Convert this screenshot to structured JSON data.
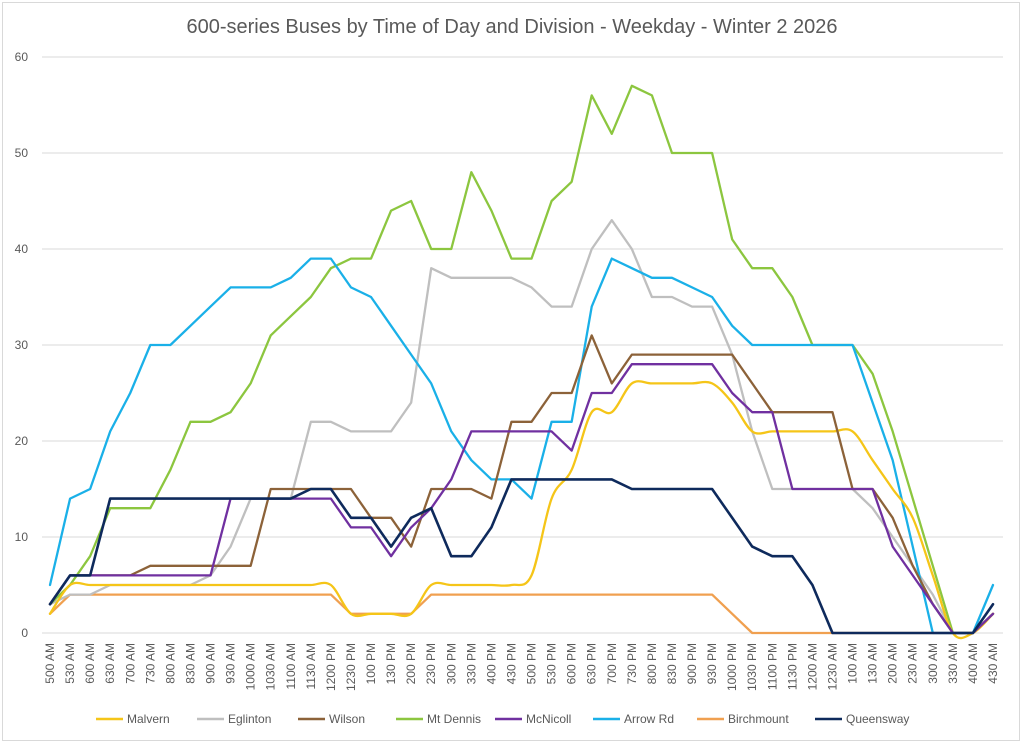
{
  "chart_data": {
    "type": "line",
    "title": "600-series Buses by Time of Day and Division - Weekday - Winter 2 2026",
    "xlabel": "",
    "ylabel": "",
    "ylim": [
      0,
      60
    ],
    "yticks": [
      0,
      10,
      20,
      30,
      40,
      50,
      60
    ],
    "grid": "horizontal",
    "legend_position": "bottom",
    "categories": [
      "500 AM",
      "530 AM",
      "600 AM",
      "630 AM",
      "700 AM",
      "730 AM",
      "800 AM",
      "830 AM",
      "900 AM",
      "930 AM",
      "1000 AM",
      "1030 AM",
      "1100 AM",
      "1130 AM",
      "1200 PM",
      "1230 PM",
      "100 PM",
      "130 PM",
      "200 PM",
      "230 PM",
      "300 PM",
      "330 PM",
      "400 PM",
      "430 PM",
      "500 PM",
      "530 PM",
      "600 PM",
      "630 PM",
      "700 PM",
      "730 PM",
      "800 PM",
      "830 PM",
      "900 PM",
      "930 PM",
      "1000 PM",
      "1030 PM",
      "1100 PM",
      "1130 PM",
      "1200 AM",
      "1230 AM",
      "100 AM",
      "130 AM",
      "200 AM",
      "230 AM",
      "300 AM",
      "330 AM",
      "400 AM",
      "430 AM"
    ],
    "series": [
      {
        "name": "Malvern",
        "color": "#f5c518",
        "smooth": true,
        "values": [
          2,
          5,
          5,
          5,
          5,
          5,
          5,
          5,
          5,
          5,
          5,
          5,
          5,
          5,
          5,
          2,
          2,
          2,
          2,
          5,
          5,
          5,
          5,
          5,
          6,
          14,
          17,
          23,
          23,
          26,
          26,
          26,
          26,
          26,
          24,
          21,
          21,
          21,
          21,
          21,
          21,
          18,
          15,
          12,
          6,
          0,
          0,
          2
        ]
      },
      {
        "name": "Eglinton",
        "color": "#bfbfbf",
        "smooth": false,
        "values": [
          3,
          4,
          4,
          5,
          5,
          5,
          5,
          5,
          6,
          9,
          14,
          14,
          14,
          22,
          22,
          21,
          21,
          21,
          24,
          38,
          37,
          37,
          37,
          37,
          36,
          34,
          34,
          40,
          43,
          40,
          35,
          35,
          34,
          34,
          29,
          21,
          15,
          15,
          15,
          15,
          15,
          13,
          10,
          7,
          4,
          0,
          0,
          2
        ]
      },
      {
        "name": "Wilson",
        "color": "#8c6239",
        "smooth": false,
        "values": [
          3,
          6,
          6,
          6,
          6,
          7,
          7,
          7,
          7,
          7,
          7,
          15,
          15,
          15,
          15,
          15,
          12,
          12,
          9,
          15,
          15,
          15,
          14,
          22,
          22,
          25,
          25,
          31,
          26,
          29,
          29,
          29,
          29,
          29,
          29,
          26,
          23,
          23,
          23,
          23,
          15,
          15,
          12,
          7,
          3,
          0,
          0,
          2
        ]
      },
      {
        "name": "Mt Dennis",
        "color": "#8cc63f",
        "smooth": false,
        "values": [
          3,
          5,
          8,
          13,
          13,
          13,
          17,
          22,
          22,
          23,
          26,
          31,
          33,
          35,
          38,
          39,
          39,
          44,
          45,
          40,
          40,
          48,
          44,
          39,
          39,
          45,
          47,
          56,
          52,
          57,
          56,
          50,
          50,
          50,
          41,
          38,
          38,
          35,
          30,
          30,
          30,
          27,
          21,
          14,
          7,
          0,
          0,
          2
        ]
      },
      {
        "name": "McNicoll",
        "color": "#7030a0",
        "smooth": false,
        "values": [
          3,
          6,
          6,
          6,
          6,
          6,
          6,
          6,
          6,
          14,
          14,
          14,
          14,
          14,
          14,
          11,
          11,
          8,
          11,
          13,
          16,
          21,
          21,
          21,
          21,
          21,
          19,
          25,
          25,
          28,
          28,
          28,
          28,
          28,
          25,
          23,
          23,
          15,
          15,
          15,
          15,
          15,
          9,
          6,
          3,
          0,
          0,
          2
        ]
      },
      {
        "name": "Arrow Rd",
        "color": "#1ab0e8",
        "smooth": false,
        "values": [
          5,
          14,
          15,
          21,
          25,
          30,
          30,
          32,
          34,
          36,
          36,
          36,
          37,
          39,
          39,
          36,
          35,
          32,
          29,
          26,
          21,
          18,
          16,
          16,
          14,
          22,
          22,
          34,
          39,
          38,
          37,
          37,
          36,
          35,
          32,
          30,
          30,
          30,
          30,
          30,
          30,
          24,
          18,
          9,
          0,
          0,
          0,
          5
        ]
      },
      {
        "name": "Birchmount",
        "color": "#f0a050",
        "smooth": false,
        "values": [
          2,
          4,
          4,
          4,
          4,
          4,
          4,
          4,
          4,
          4,
          4,
          4,
          4,
          4,
          4,
          2,
          2,
          2,
          2,
          4,
          4,
          4,
          4,
          4,
          4,
          4,
          4,
          4,
          4,
          4,
          4,
          4,
          4,
          4,
          2,
          0,
          0,
          0,
          0,
          0,
          0,
          0,
          0,
          0,
          0,
          0,
          0,
          2
        ]
      },
      {
        "name": "Queensway",
        "color": "#0e2a5c",
        "smooth": false,
        "values": [
          3,
          6,
          6,
          14,
          14,
          14,
          14,
          14,
          14,
          14,
          14,
          14,
          14,
          15,
          15,
          12,
          12,
          9,
          12,
          13,
          8,
          8,
          11,
          16,
          16,
          16,
          16,
          16,
          16,
          15,
          15,
          15,
          15,
          15,
          12,
          9,
          8,
          8,
          5,
          0,
          0,
          0,
          0,
          0,
          0,
          0,
          0,
          3
        ]
      }
    ]
  }
}
